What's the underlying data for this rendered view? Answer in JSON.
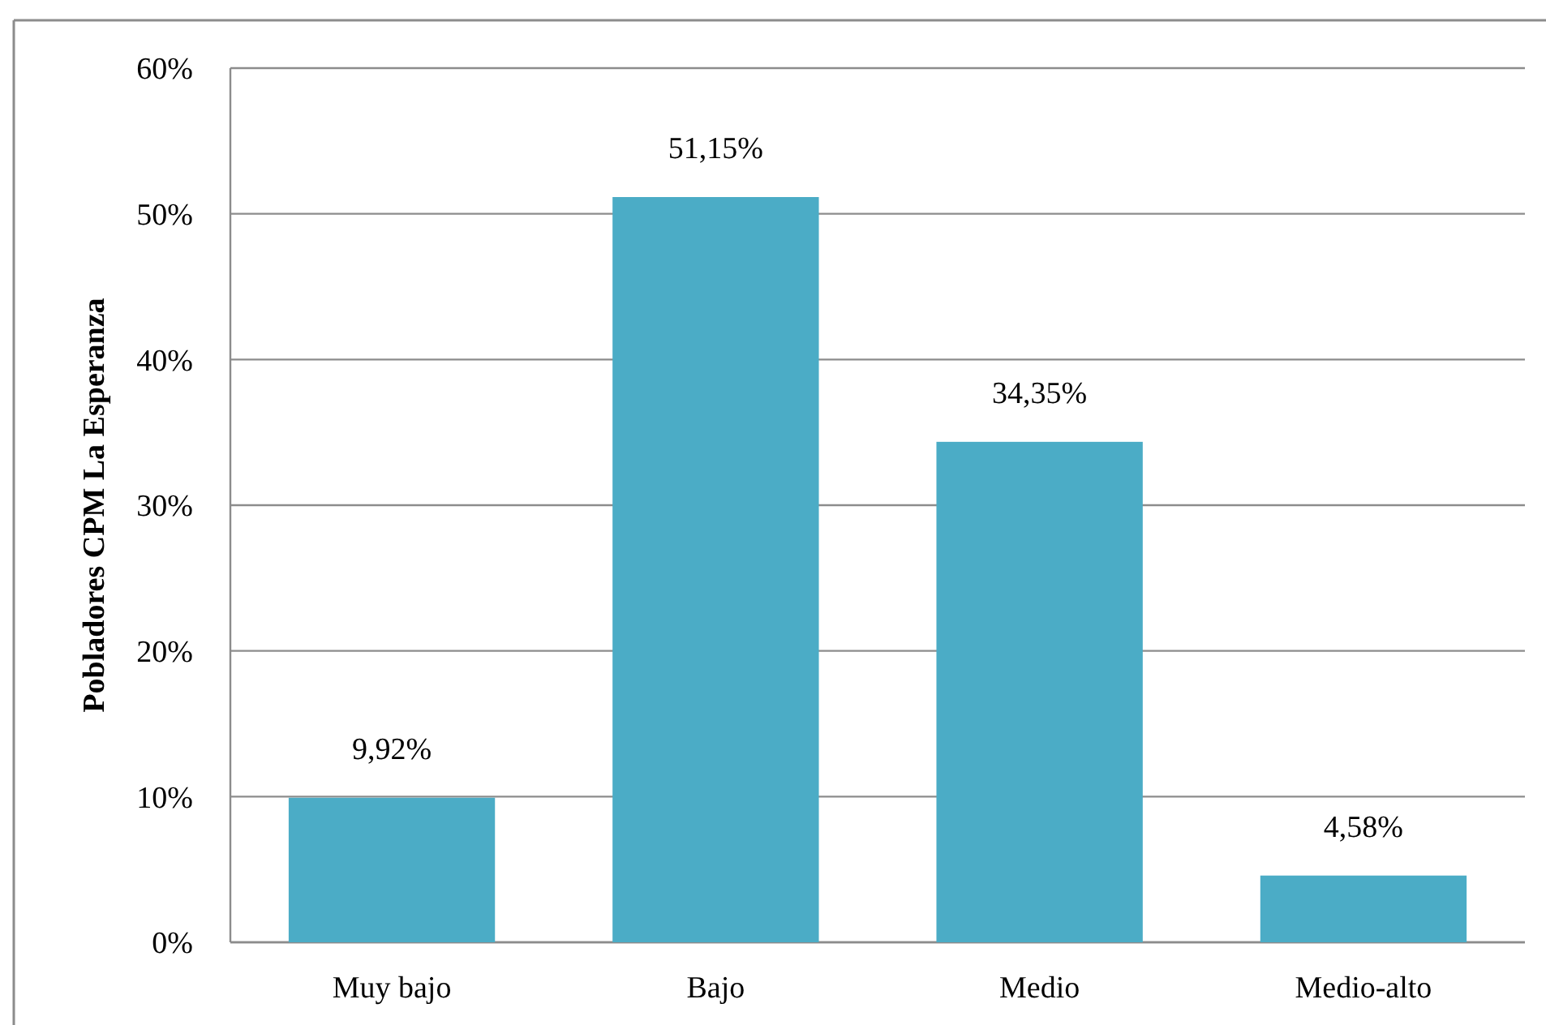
{
  "chart_data": {
    "type": "bar",
    "ylabel": "Pobladores CPM La Esperanza",
    "categories": [
      "Muy bajo",
      "Bajo",
      "Medio",
      "Medio-alto"
    ],
    "values": [
      9.92,
      51.15,
      34.35,
      4.58
    ],
    "color": "#4bacc6",
    "value_labels": [
      "9,92%",
      "51,15%",
      "34,35%",
      "4,58%"
    ],
    "ylim": [
      0,
      60
    ],
    "yticks": [
      {
        "value": 0,
        "label": "0%"
      },
      {
        "value": 10,
        "label": "10%"
      },
      {
        "value": 20,
        "label": "20%"
      },
      {
        "value": 30,
        "label": "30%"
      },
      {
        "value": 40,
        "label": "40%"
      },
      {
        "value": 50,
        "label": "50%"
      },
      {
        "value": 60,
        "label": "60%"
      }
    ],
    "grid": "y"
  }
}
